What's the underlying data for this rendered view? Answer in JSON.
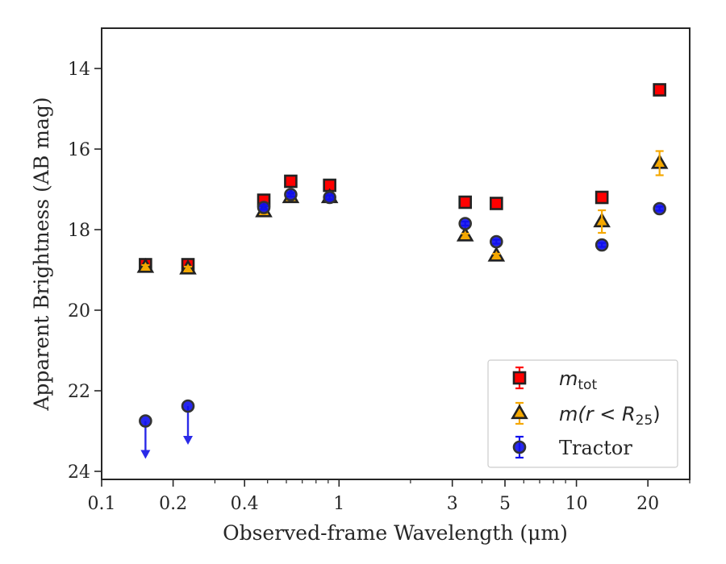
{
  "chart_data": {
    "type": "scatter",
    "xlabel": "Observed-frame Wavelength (μm)",
    "ylabel": "Apparent Brightness (AB mag)",
    "x_scale": "log",
    "xlim": [
      0.1,
      30
    ],
    "ylim": [
      24.2,
      13.0
    ],
    "y_inverted": true,
    "x_ticks": [
      {
        "value": 0.1,
        "label": "0.1"
      },
      {
        "value": 0.2,
        "label": "0.2"
      },
      {
        "value": 0.4,
        "label": "0.4"
      },
      {
        "value": 1,
        "label": "1"
      },
      {
        "value": 3,
        "label": "3"
      },
      {
        "value": 5,
        "label": "5"
      },
      {
        "value": 10,
        "label": "10"
      },
      {
        "value": 20,
        "label": "20"
      }
    ],
    "y_ticks": [
      {
        "value": 14,
        "label": "14"
      },
      {
        "value": 16,
        "label": "16"
      },
      {
        "value": 18,
        "label": "18"
      },
      {
        "value": 20,
        "label": "20"
      },
      {
        "value": 22,
        "label": "22"
      },
      {
        "value": 24,
        "label": "24"
      }
    ],
    "grid": false,
    "legend_position": "lower-right",
    "series": [
      {
        "name_prefix": "m",
        "name_sub": "tot",
        "color": "#ff0000",
        "edge": "#222222",
        "marker": "square",
        "points": [
          {
            "x": 0.153,
            "y": 18.87,
            "err": 0.08
          },
          {
            "x": 0.231,
            "y": 18.87,
            "err": 0.08
          },
          {
            "x": 0.482,
            "y": 17.27,
            "err": 0.08
          },
          {
            "x": 0.626,
            "y": 16.8,
            "err": 0.08
          },
          {
            "x": 0.913,
            "y": 16.9,
            "err": 0.08
          },
          {
            "x": 3.4,
            "y": 17.32,
            "err": 0.05
          },
          {
            "x": 4.6,
            "y": 17.35,
            "err": 0.05
          },
          {
            "x": 12.8,
            "y": 17.2,
            "err": 0.08
          },
          {
            "x": 22.4,
            "y": 14.53,
            "err": 0.05
          }
        ]
      },
      {
        "name_prefix": "m(r < R",
        "name_sub": "25",
        "name_suffix": ")",
        "color": "#f5a800",
        "edge": "#222222",
        "marker": "triangle",
        "points": [
          {
            "x": 0.153,
            "y": 18.93,
            "err": 0.05
          },
          {
            "x": 0.231,
            "y": 18.97,
            "err": 0.05
          },
          {
            "x": 0.482,
            "y": 17.55,
            "err": 0.05
          },
          {
            "x": 0.626,
            "y": 17.2,
            "err": 0.05
          },
          {
            "x": 0.913,
            "y": 17.2,
            "err": 0.05
          },
          {
            "x": 3.4,
            "y": 18.15,
            "err": 0.05
          },
          {
            "x": 4.6,
            "y": 18.65,
            "err": 0.05
          },
          {
            "x": 12.8,
            "y": 17.8,
            "err": 0.28
          },
          {
            "x": 22.4,
            "y": 16.35,
            "err": 0.3
          }
        ]
      },
      {
        "name": "Tractor",
        "color": "#1010ee",
        "edge": "#333333",
        "marker": "circle",
        "points": [
          {
            "x": 0.153,
            "y": 22.75,
            "upper_limit": true,
            "arrow_to": 23.65
          },
          {
            "x": 0.231,
            "y": 22.38,
            "upper_limit": true,
            "arrow_to": 23.3
          },
          {
            "x": 0.482,
            "y": 17.45,
            "err": 0.05
          },
          {
            "x": 0.626,
            "y": 17.13,
            "err": 0.05
          },
          {
            "x": 0.913,
            "y": 17.2,
            "err": 0.05
          },
          {
            "x": 3.4,
            "y": 17.85,
            "err": 0.05
          },
          {
            "x": 4.6,
            "y": 18.3,
            "err": 0.05
          },
          {
            "x": 12.8,
            "y": 18.38,
            "err": 0.05
          },
          {
            "x": 22.4,
            "y": 17.48,
            "err": 0.05
          }
        ]
      }
    ]
  }
}
